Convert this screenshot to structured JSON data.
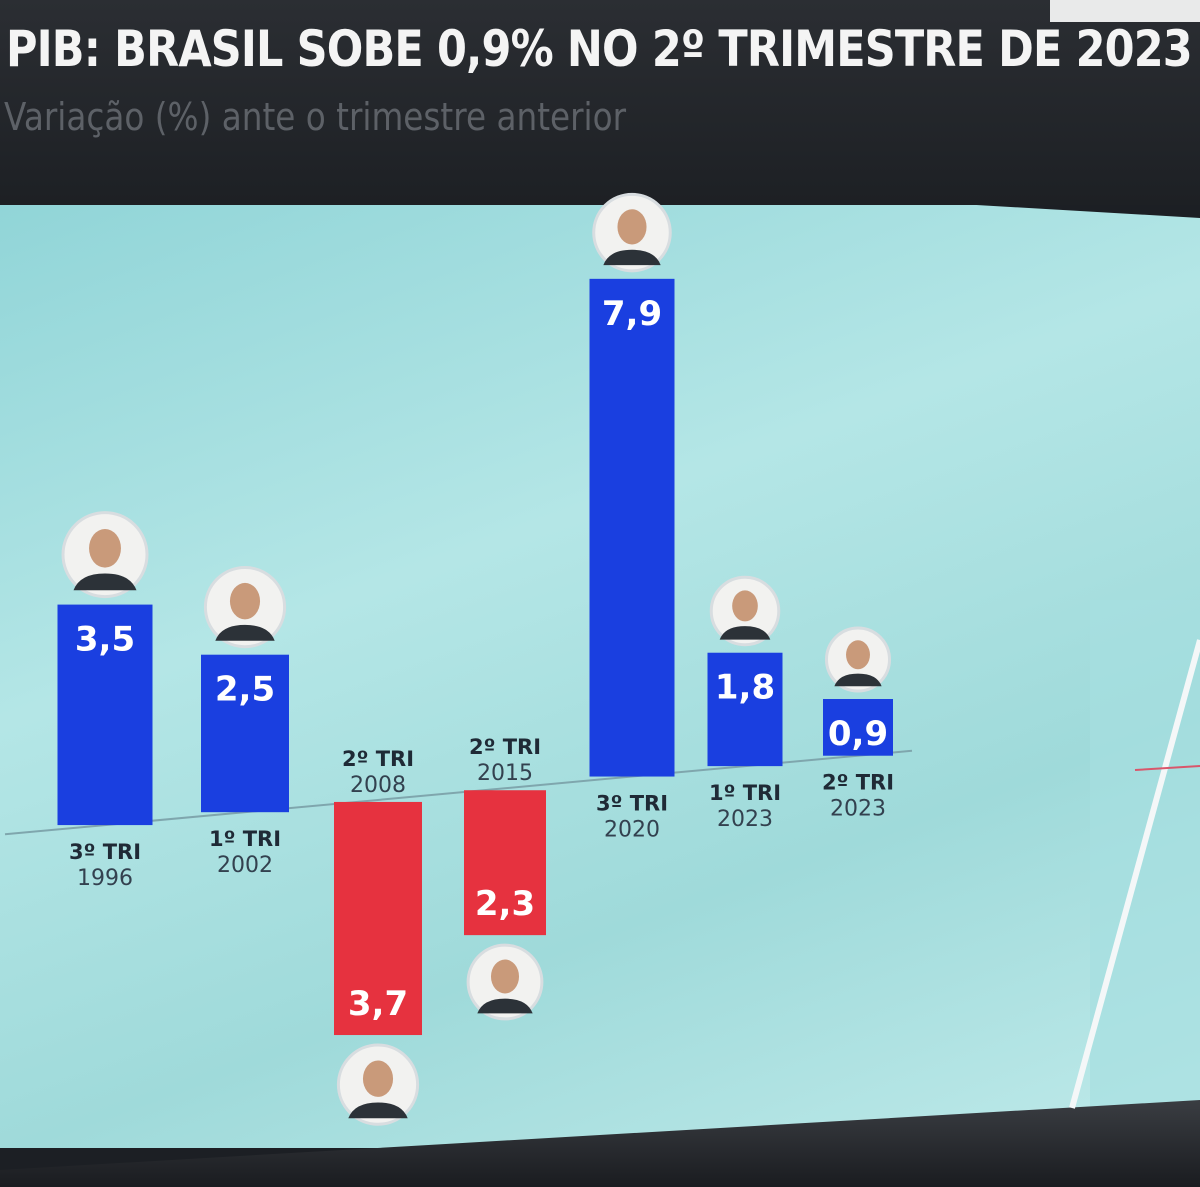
{
  "header": {
    "title": "PIB: BRASIL SOBE 0,9% NO 2º TRIMESTRE DE 2023",
    "subtitle": "Variação (%) ante o trimestre anterior"
  },
  "colors": {
    "positive": "#1a3fe0",
    "negative": "#e6323f",
    "background": "#a8e0e1"
  },
  "chart_data": {
    "type": "bar",
    "title": "PIB: BRASIL SOBE 0,9% NO 2º TRIMESTRE DE 2023",
    "subtitle": "Variação (%) ante o trimestre anterior",
    "categories": [
      "3º TRI 1996",
      "1º TRI 2002",
      "2º TRI 2008",
      "2º TRI 2015",
      "3º TRI 2020",
      "1º TRI 2023",
      "2º TRI 2023"
    ],
    "bars": [
      {
        "quarter": "3º TRI",
        "year": "1996",
        "value": 3.5,
        "label": "3,5",
        "icon": "president-portrait-icon"
      },
      {
        "quarter": "1º TRI",
        "year": "2002",
        "value": 2.5,
        "label": "2,5",
        "icon": "president-portrait-icon"
      },
      {
        "quarter": "2º TRI",
        "year": "2008",
        "value": -3.7,
        "label": "3,7",
        "icon": "president-portrait-icon"
      },
      {
        "quarter": "2º TRI",
        "year": "2015",
        "value": -2.3,
        "label": "2,3",
        "icon": "president-portrait-icon"
      },
      {
        "quarter": "3º TRI",
        "year": "2020",
        "value": 7.9,
        "label": "7,9",
        "icon": "president-portrait-icon"
      },
      {
        "quarter": "1º TRI",
        "year": "2023",
        "value": 1.8,
        "label": "1,8",
        "icon": "president-portrait-icon"
      },
      {
        "quarter": "2º TRI",
        "year": "2023",
        "value": 0.9,
        "label": "0,9",
        "icon": "president-portrait-icon"
      }
    ],
    "ylabel": "",
    "xlabel": "",
    "grid": false,
    "legend": "none"
  }
}
